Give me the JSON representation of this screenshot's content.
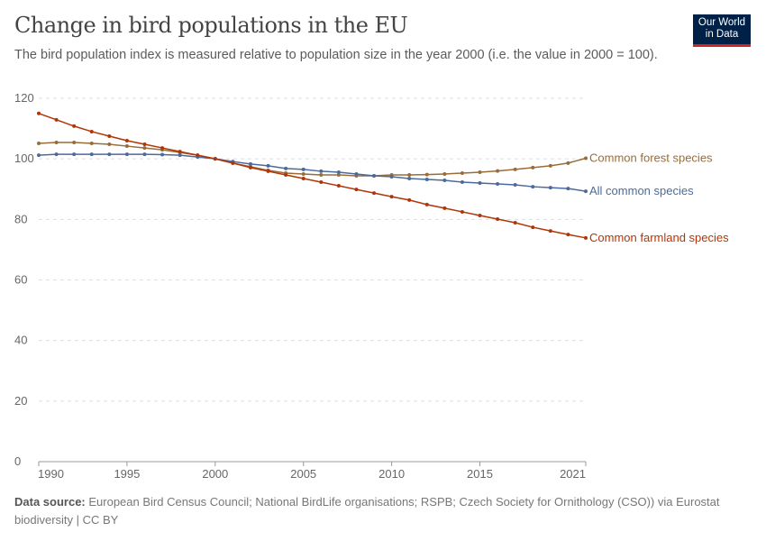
{
  "header": {
    "title": "Change in bird populations in the EU",
    "subtitle": "The bird population index is measured relative to population size in the year 2000 (i.e. the value in 2000 = 100).",
    "logo": "Our World in Data"
  },
  "footer": {
    "source_label": "Data source:",
    "source_text": " European Bird Census Council; National BirdLife organisations; RSPB; Czech Society for Ornithology (CSO)) via Eurostat biodiversity | CC BY"
  },
  "chart_data": {
    "type": "line",
    "title": "Change in bird populations in the EU",
    "xlim": [
      1990,
      2021
    ],
    "ylim": [
      0,
      120
    ],
    "x_ticks": [
      "1990",
      "1995",
      "2000",
      "2005",
      "2010",
      "2015",
      "2021"
    ],
    "y_ticks": [
      "0",
      "20",
      "40",
      "60",
      "80",
      "100",
      "120"
    ],
    "grid": "horizontal dashed",
    "legend": "line-end labels right",
    "x": [
      1990,
      1991,
      1992,
      1993,
      1994,
      1995,
      1996,
      1997,
      1998,
      1999,
      2000,
      2001,
      2002,
      2003,
      2004,
      2005,
      2006,
      2007,
      2008,
      2009,
      2010,
      2011,
      2012,
      2013,
      2014,
      2015,
      2016,
      2017,
      2018,
      2019,
      2020,
      2021
    ],
    "series": [
      {
        "name": "Common forest species",
        "color": "#996d39",
        "values": [
          105.1,
          105.4,
          105.4,
          105.1,
          104.8,
          104.2,
          103.6,
          103,
          102.1,
          101.2,
          100,
          98.6,
          97.4,
          96.2,
          95.3,
          95,
          94.7,
          94.7,
          94.4,
          94.4,
          94.7,
          94.7,
          94.8,
          95,
          95.3,
          95.6,
          96,
          96.5,
          97.1,
          97.7,
          98.6,
          100.2
        ]
      },
      {
        "name": "All common species",
        "color": "#4c6a9c",
        "values": [
          101.2,
          101.5,
          101.5,
          101.5,
          101.5,
          101.5,
          101.5,
          101.4,
          101.2,
          100.6,
          100,
          99.1,
          98.3,
          97.7,
          96.8,
          96.5,
          95.9,
          95.6,
          95,
          94.4,
          94.1,
          93.5,
          93.2,
          92.9,
          92.3,
          92,
          91.7,
          91.4,
          90.8,
          90.5,
          90.2,
          89.3
        ]
      },
      {
        "name": "Common farmland species",
        "color": "#b13507",
        "values": [
          115,
          112.9,
          110.8,
          109,
          107.5,
          106,
          104.8,
          103.6,
          102.4,
          101.2,
          100,
          98.6,
          97.1,
          95.9,
          94.7,
          93.5,
          92.3,
          91.1,
          89.9,
          88.7,
          87.5,
          86.4,
          84.9,
          83.7,
          82.5,
          81.3,
          80.1,
          78.9,
          77.4,
          76.2,
          75,
          73.9
        ]
      }
    ]
  }
}
